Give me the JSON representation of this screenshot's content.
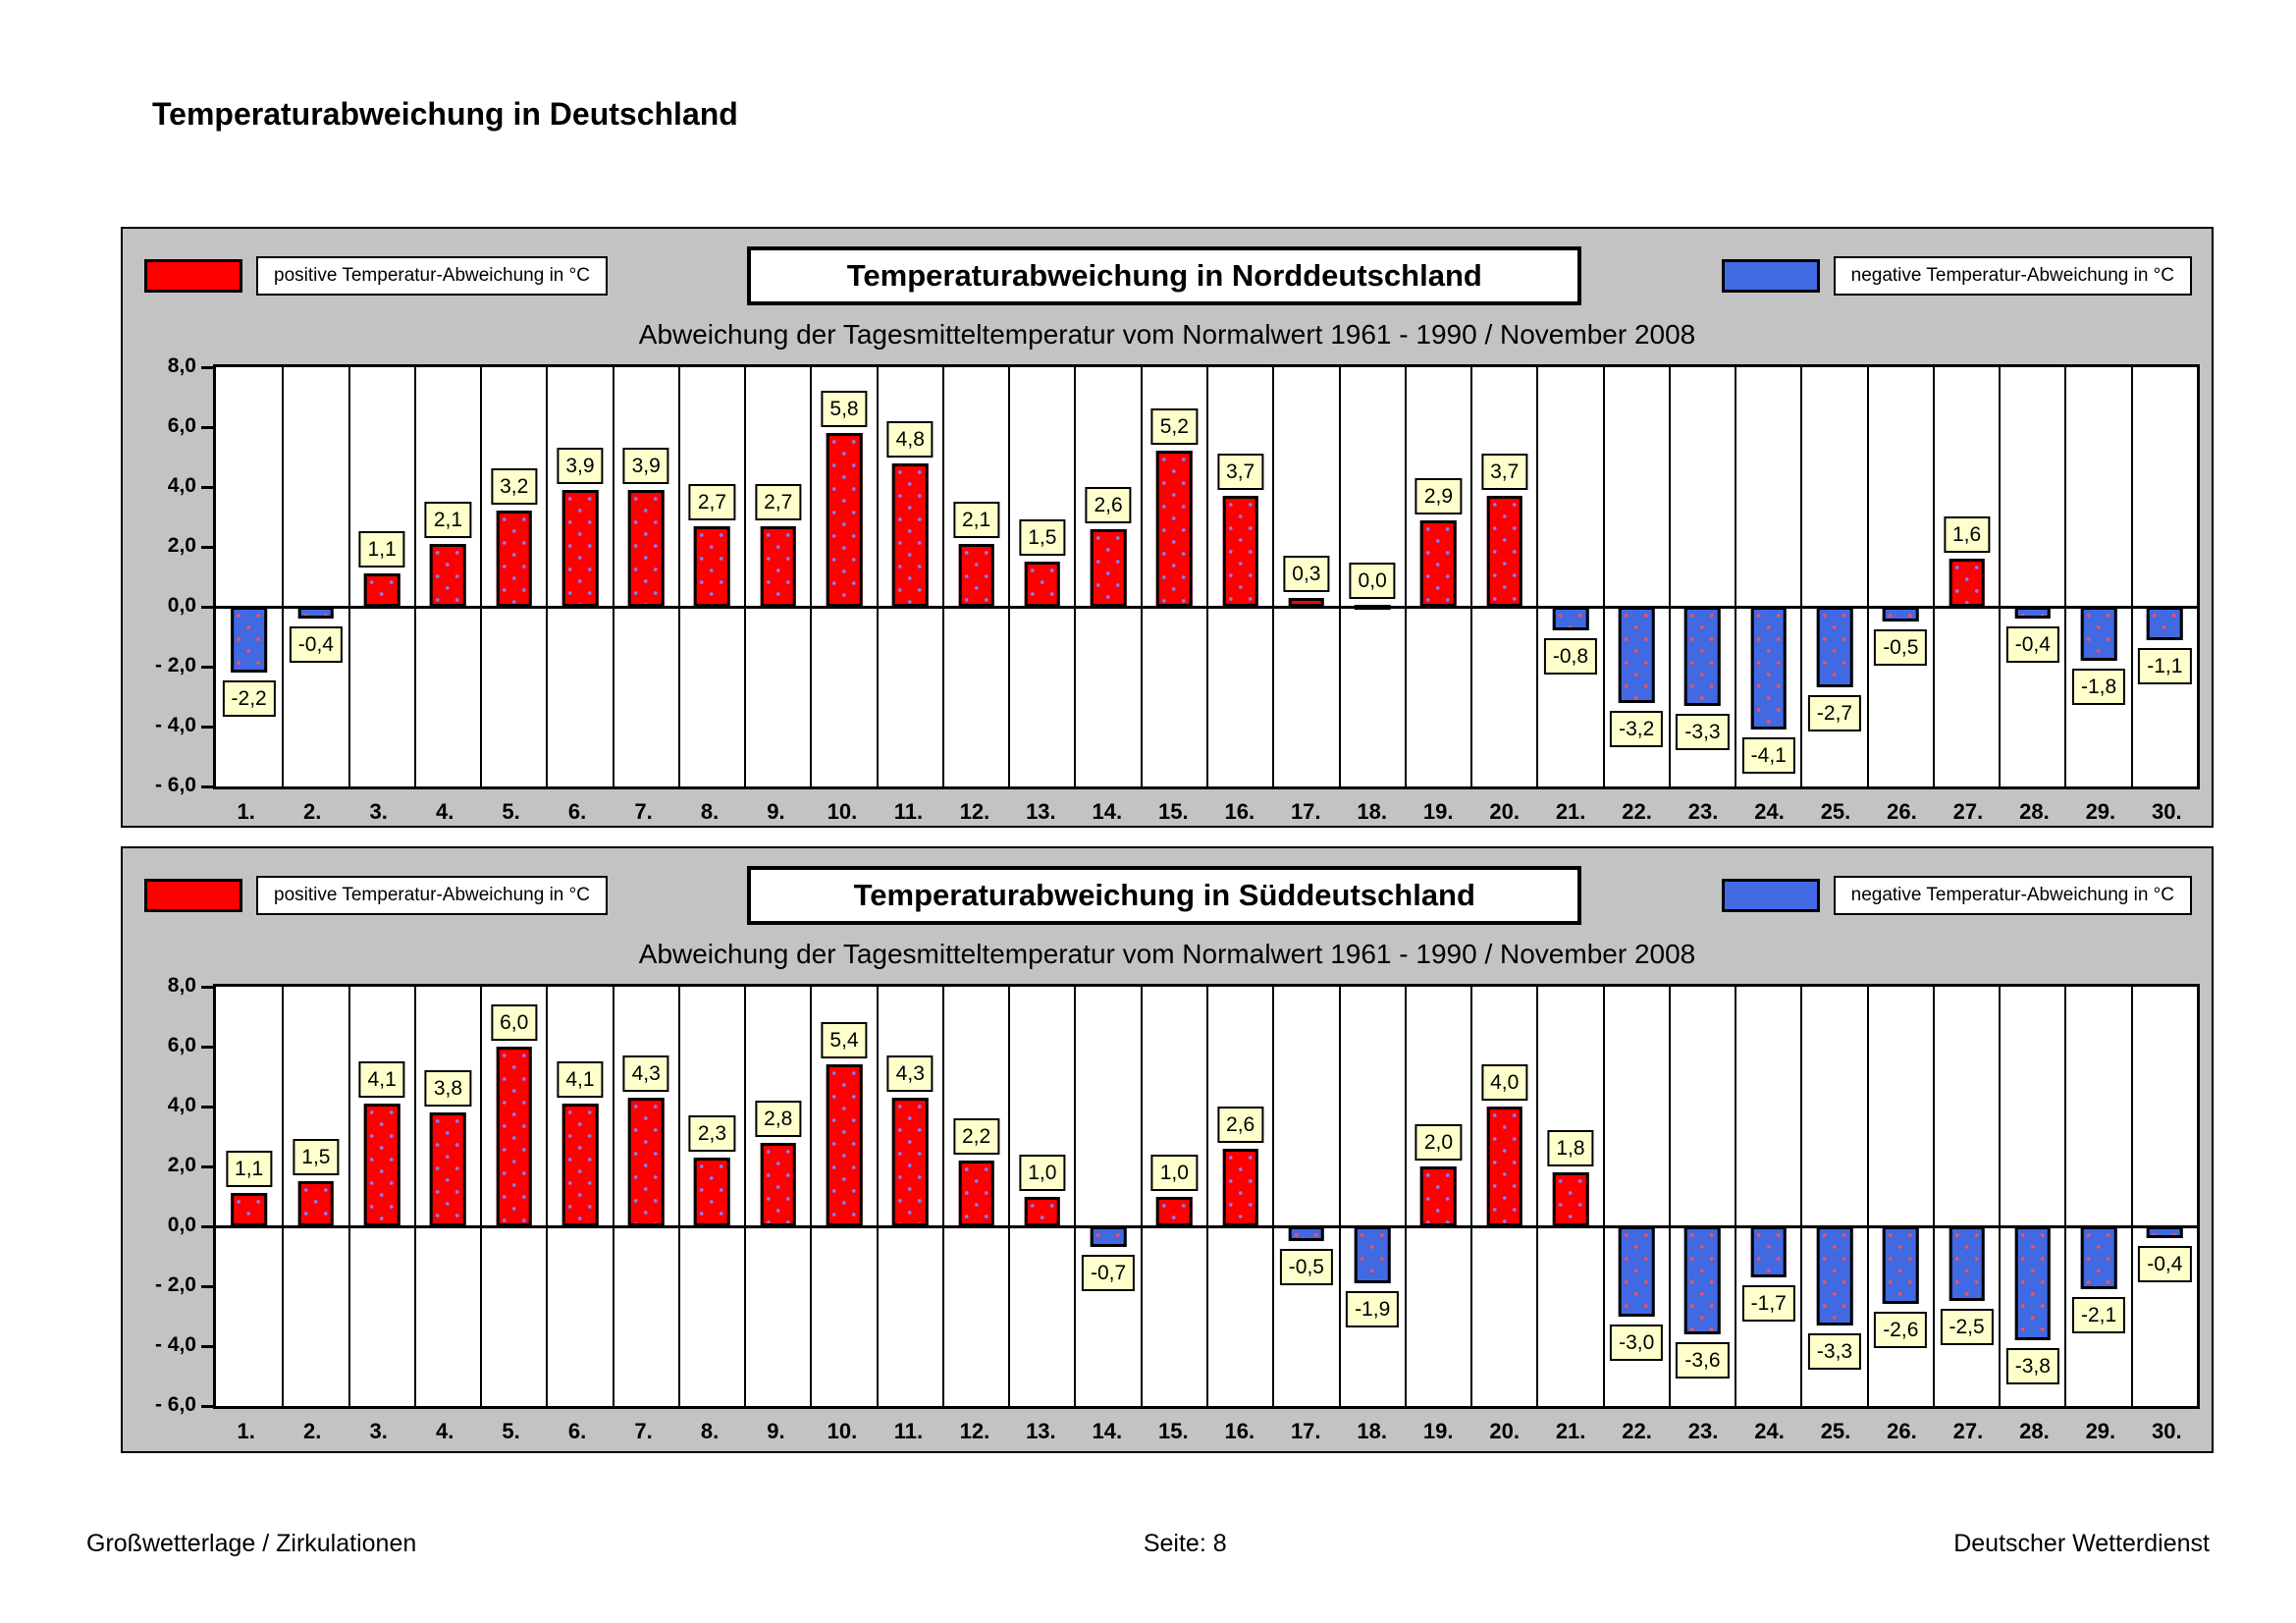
{
  "page": {
    "title": "Temperaturabweichung in Deutschland"
  },
  "legend": {
    "positive_label": "positive Temperatur-Abweichung in °C",
    "negative_label": "negative Temperatur-Abweichung in °C",
    "positive_color": "#FF0000",
    "negative_color": "#4169E1",
    "value_label_bg": "#FFFFCC",
    "panel_bg": "#C3C3C3"
  },
  "axis": {
    "ytick_values": [
      8,
      6,
      4,
      2,
      0,
      -2,
      -4,
      -6
    ],
    "ytick_labels": [
      "8,0",
      "6,0",
      "4,0",
      "2,0",
      "0,0",
      "- 2,0",
      "- 4,0",
      "- 6,0"
    ],
    "ylim": [
      -6,
      8
    ]
  },
  "chart_data": [
    {
      "type": "bar",
      "title": "Temperaturabweichung in Norddeutschland",
      "subtitle": "Abweichung der Tagesmitteltemperatur vom Normalwert 1961 - 1990  /  November 2008",
      "categories": [
        "1.",
        "2.",
        "3.",
        "4.",
        "5.",
        "6.",
        "7.",
        "8.",
        "9.",
        "10.",
        "11.",
        "12.",
        "13.",
        "14.",
        "15.",
        "16.",
        "17.",
        "18.",
        "19.",
        "20.",
        "21.",
        "22.",
        "23.",
        "24.",
        "25.",
        "26.",
        "27.",
        "28.",
        "29.",
        "30."
      ],
      "values": [
        -2.2,
        -0.4,
        1.1,
        2.1,
        3.2,
        3.9,
        3.9,
        2.7,
        2.7,
        5.8,
        4.8,
        2.1,
        1.5,
        2.6,
        5.2,
        3.7,
        0.3,
        0.0,
        2.9,
        3.7,
        -0.8,
        -3.2,
        -3.3,
        -4.1,
        -2.7,
        -0.5,
        1.6,
        -0.4,
        -1.8,
        -1.1
      ],
      "value_labels": [
        "-2,2",
        "-0,4",
        "1,1",
        "2,1",
        "3,2",
        "3,9",
        "3,9",
        "2,7",
        "2,7",
        "5,8",
        "4,8",
        "2,1",
        "1,5",
        "2,6",
        "5,2",
        "3,7",
        "0,3",
        "0,0",
        "2,9",
        "3,7",
        "-0,8",
        "-3,2",
        "-3,3",
        "-4,1",
        "-2,7",
        "-0,5",
        "1,6",
        "-0,4",
        "-1,8",
        "-1,1"
      ],
      "xlabel": "",
      "ylabel": "",
      "ylim": [
        -6,
        8
      ],
      "grid": "vertical-only",
      "legend_position": "top"
    },
    {
      "type": "bar",
      "title": "Temperaturabweichung in Süddeutschland",
      "subtitle": "Abweichung der Tagesmitteltemperatur vom Normalwert 1961 - 1990  /  November 2008",
      "categories": [
        "1.",
        "2.",
        "3.",
        "4.",
        "5.",
        "6.",
        "7.",
        "8.",
        "9.",
        "10.",
        "11.",
        "12.",
        "13.",
        "14.",
        "15.",
        "16.",
        "17.",
        "18.",
        "19.",
        "20.",
        "21.",
        "22.",
        "23.",
        "24.",
        "25.",
        "26.",
        "27.",
        "28.",
        "29.",
        "30."
      ],
      "values": [
        1.1,
        1.5,
        4.1,
        3.8,
        6.0,
        4.1,
        4.3,
        2.3,
        2.8,
        5.4,
        4.3,
        2.2,
        1.0,
        -0.7,
        1.0,
        2.6,
        -0.5,
        -1.9,
        2.0,
        4.0,
        1.8,
        -3.0,
        -3.6,
        -1.7,
        -3.3,
        -2.6,
        -2.5,
        -3.8,
        -2.1,
        -0.4
      ],
      "value_labels": [
        "1,1",
        "1,5",
        "4,1",
        "3,8",
        "6,0",
        "4,1",
        "4,3",
        "2,3",
        "2,8",
        "5,4",
        "4,3",
        "2,2",
        "1,0",
        "-0,7",
        "1,0",
        "2,6",
        "-0,5",
        "-1,9",
        "2,0",
        "4,0",
        "1,8",
        "-3,0",
        "-3,6",
        "-1,7",
        "-3,3",
        "-2,6",
        "-2,5",
        "-3,8",
        "-2,1",
        "-0,4"
      ],
      "xlabel": "",
      "ylabel": "",
      "ylim": [
        -6,
        8
      ],
      "grid": "vertical-only",
      "legend_position": "top"
    }
  ],
  "footer": {
    "left": "Großwetterlage / Zirkulationen",
    "center": "Seite: 8",
    "right": "Deutscher Wetterdienst"
  }
}
